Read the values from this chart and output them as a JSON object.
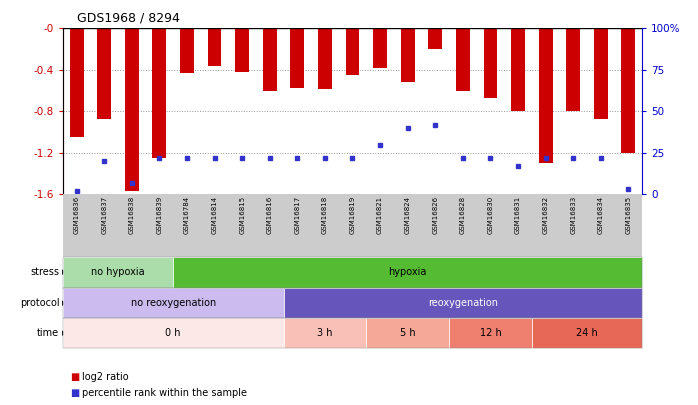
{
  "title": "GDS1968 / 8294",
  "samples": [
    "GSM16836",
    "GSM16837",
    "GSM16838",
    "GSM16839",
    "GSM16784",
    "GSM16814",
    "GSM16815",
    "GSM16816",
    "GSM16817",
    "GSM16818",
    "GSM16819",
    "GSM16821",
    "GSM16824",
    "GSM16826",
    "GSM16828",
    "GSM16830",
    "GSM16831",
    "GSM16832",
    "GSM16833",
    "GSM16834",
    "GSM16835"
  ],
  "log2_ratio": [
    -1.05,
    -0.87,
    -1.57,
    -1.25,
    -0.43,
    -0.36,
    -0.42,
    -0.6,
    -0.57,
    -0.58,
    -0.45,
    -0.38,
    -0.52,
    -0.2,
    -0.6,
    -0.67,
    -0.8,
    -1.3,
    -0.8,
    -0.87,
    -1.2
  ],
  "percentile": [
    2,
    20,
    7,
    22,
    22,
    22,
    22,
    22,
    22,
    22,
    22,
    30,
    40,
    42,
    22,
    22,
    17,
    22,
    22,
    22,
    3
  ],
  "ylim_left": [
    -1.6,
    0.0
  ],
  "yticks_left": [
    0.0,
    -0.4,
    -0.8,
    -1.2,
    -1.6
  ],
  "ytick_labels_left": [
    "-0",
    "-0.4",
    "-0.8",
    "-1.2",
    "-1.6"
  ],
  "yticks_right": [
    100,
    75,
    50,
    25,
    0
  ],
  "ytick_labels_right": [
    "100%",
    "75",
    "50",
    "25",
    "0"
  ],
  "bar_color": "#cc0000",
  "dot_color": "#3333cc",
  "stress_groups": [
    {
      "label": "no hypoxia",
      "start": 0,
      "end": 4,
      "color": "#aaddaa"
    },
    {
      "label": "hypoxia",
      "start": 4,
      "end": 21,
      "color": "#55bb33"
    }
  ],
  "protocol_groups": [
    {
      "label": "no reoxygenation",
      "start": 0,
      "end": 8,
      "color": "#ccbbee"
    },
    {
      "label": "reoxygenation",
      "start": 8,
      "end": 21,
      "color": "#6655bb"
    }
  ],
  "time_groups": [
    {
      "label": "0 h",
      "start": 0,
      "end": 8,
      "color": "#fde8e8"
    },
    {
      "label": "3 h",
      "start": 8,
      "end": 11,
      "color": "#f9c0b8"
    },
    {
      "label": "5 h",
      "start": 11,
      "end": 14,
      "color": "#f5a898"
    },
    {
      "label": "12 h",
      "start": 14,
      "end": 17,
      "color": "#ef8070"
    },
    {
      "label": "24 h",
      "start": 17,
      "end": 21,
      "color": "#e86858"
    }
  ],
  "bar_width": 0.5,
  "axis_color_left": "#cc0000",
  "axis_color_right": "#0000cc",
  "grid_color": "#999999",
  "bg_xlabel": "#cccccc"
}
